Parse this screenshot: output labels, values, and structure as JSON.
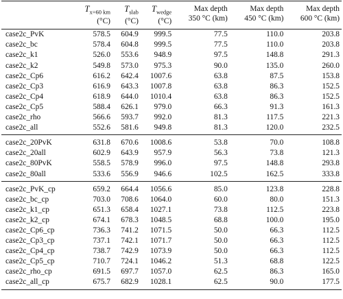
{
  "table": {
    "columns": [
      {
        "symbol": "T",
        "sub": "x=60 km",
        "unit": "(°C)"
      },
      {
        "symbol": "T",
        "sub": "slab",
        "unit": "(°C)"
      },
      {
        "symbol": "T",
        "sub": "wedge",
        "unit": "(°C)"
      },
      {
        "title": "Max depth",
        "unit": "350 °C (km)"
      },
      {
        "title": "Max depth",
        "unit": "450 °C (km)"
      },
      {
        "title": "Max depth",
        "unit": "600 °C (km)"
      }
    ],
    "groups": [
      [
        [
          "case2c_PvK",
          "578.5",
          "604.9",
          "999.5",
          "77.5",
          "110.0",
          "203.8"
        ],
        [
          "case2c_bc",
          "578.4",
          "604.8",
          "999.5",
          "77.5",
          "110.0",
          "203.8"
        ],
        [
          "case2c_k1",
          "526.0",
          "553.6",
          "948.9",
          "97.5",
          "148.8",
          "291.3"
        ],
        [
          "case2c_k2",
          "549.8",
          "573.0",
          "975.3",
          "90.0",
          "135.0",
          "260.0"
        ],
        [
          "case2c_Cp6",
          "616.2",
          "642.4",
          "1007.6",
          "63.8",
          "87.5",
          "153.8"
        ],
        [
          "case2c_Cp3",
          "616.9",
          "643.3",
          "1007.8",
          "63.8",
          "86.3",
          "152.5"
        ],
        [
          "case2c_Cp4",
          "618.9",
          "644.0",
          "1010.4",
          "63.8",
          "86.3",
          "152.5"
        ],
        [
          "case2c_Cp5",
          "588.4",
          "626.1",
          "979.0",
          "66.3",
          "91.3",
          "161.3"
        ],
        [
          "case2c_rho",
          "566.6",
          "593.7",
          "992.0",
          "81.3",
          "117.5",
          "221.3"
        ],
        [
          "case2c_all",
          "552.6",
          "581.6",
          "949.8",
          "81.3",
          "120.0",
          "232.5"
        ]
      ],
      [
        [
          "case2c_20PvK",
          "631.8",
          "670.6",
          "1008.6",
          "53.8",
          "70.0",
          "108.8"
        ],
        [
          "case2c_20all",
          "602.9",
          "643.9",
          "957.9",
          "56.3",
          "73.8",
          "121.3"
        ],
        [
          "case2c_80PvK",
          "558.5",
          "578.9",
          "996.0",
          "97.5",
          "148.8",
          "293.8"
        ],
        [
          "case2c_80all",
          "533.6",
          "556.9",
          "946.6",
          "102.5",
          "162.5",
          "333.8"
        ]
      ],
      [
        [
          "case2c_PvK_cp",
          "659.2",
          "664.4",
          "1056.6",
          "85.0",
          "123.8",
          "228.8"
        ],
        [
          "case2c_bc_cp",
          "703.0",
          "708.6",
          "1064.0",
          "60.0",
          "80.0",
          "151.3"
        ],
        [
          "case2c_k1_cp",
          "651.3",
          "658.4",
          "1027.1",
          "73.8",
          "112.5",
          "223.8"
        ],
        [
          "case2c_k2_cp",
          "674.1",
          "678.3",
          "1048.5",
          "68.8",
          "100.0",
          "195.0"
        ],
        [
          "case2c_Cp6_cp",
          "736.3",
          "741.2",
          "1071.5",
          "50.0",
          "66.3",
          "112.5"
        ],
        [
          "case2c_Cp3_cp",
          "737.1",
          "742.1",
          "1071.7",
          "50.0",
          "66.3",
          "112.5"
        ],
        [
          "case2c_Cp4_cp",
          "738.7",
          "742.9",
          "1073.9",
          "50.0",
          "66.3",
          "112.5"
        ],
        [
          "case2c_Cp5_cp",
          "710.7",
          "724.1",
          "1046.2",
          "51.3",
          "68.8",
          "122.5"
        ],
        [
          "case2c_rho_cp",
          "691.5",
          "697.7",
          "1057.0",
          "62.5",
          "86.3",
          "165.0"
        ],
        [
          "case2c_all_cp",
          "675.7",
          "682.9",
          "1028.1",
          "62.5",
          "90.0",
          "177.5"
        ]
      ]
    ]
  }
}
